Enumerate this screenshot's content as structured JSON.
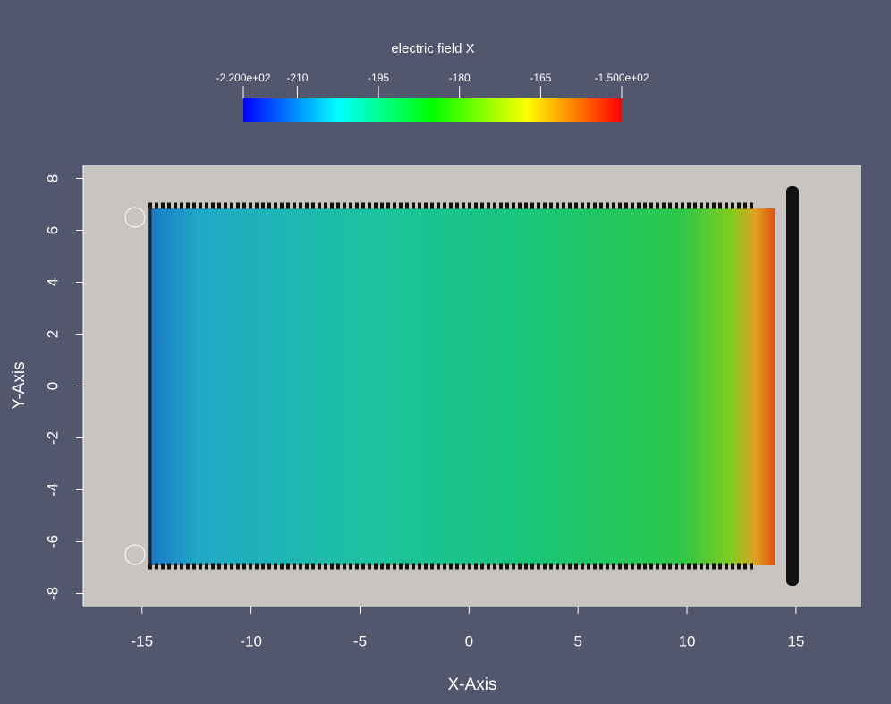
{
  "chart_data": {
    "type": "field",
    "colorbar": {
      "title": "electric field X",
      "clim": [
        -220,
        -150
      ],
      "ticks": [
        {
          "value": -220,
          "label": "-2.200e+02"
        },
        -210,
        -195,
        -180,
        -165,
        {
          "value": -150,
          "label": "-1.500e+02"
        }
      ],
      "colormap": [
        "#0000ff",
        "#00ffff",
        "#00ff00",
        "#ffff00",
        "#ff0000"
      ]
    },
    "xlabel": "X-Axis",
    "ylabel": "Y-Axis",
    "xlim": [
      -17.7,
      18
    ],
    "ylim": [
      -8.5,
      8.5
    ],
    "xticks": [
      -15,
      -10,
      -5,
      0,
      5,
      10,
      15
    ],
    "yticks": [
      -8,
      -6,
      -4,
      -2,
      0,
      2,
      4,
      6,
      8
    ]
  }
}
